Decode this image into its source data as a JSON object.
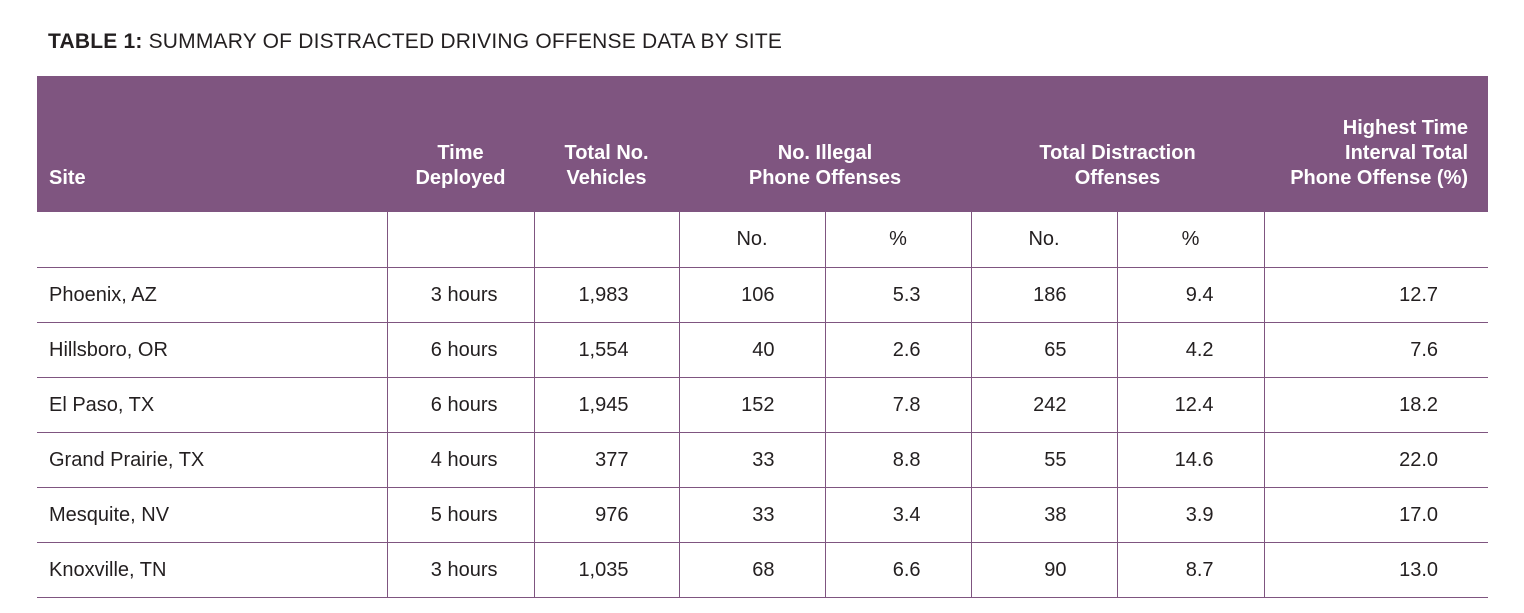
{
  "caption": {
    "label": "TABLE 1:",
    "title": "SUMMARY OF DISTRACTED DRIVING OFFENSE DATA BY SITE"
  },
  "headers": {
    "site": "Site",
    "time_deployed_1": "Time",
    "time_deployed_2": "Deployed",
    "total_vehicles_1": "Total No.",
    "total_vehicles_2": "Vehicles",
    "phone_offenses_1": "No. Illegal",
    "phone_offenses_2": "Phone Offenses",
    "distraction_offenses_1": "Total Distraction",
    "distraction_offenses_2": "Offenses",
    "highest_1": "Highest Time",
    "highest_2": "Interval  Total",
    "highest_3": "Phone Offense (%)"
  },
  "subheaders": {
    "phone_no": "No.",
    "phone_pct": "%",
    "dist_no": "No.",
    "dist_pct": "%"
  },
  "rows": [
    {
      "site": "Phoenix, AZ",
      "time": "3 hours",
      "vehicles": "1,983",
      "phone_no": "106",
      "phone_pct": "5.3",
      "dist_no": "186",
      "dist_pct": "9.4",
      "highest": "12.7"
    },
    {
      "site": "Hillsboro, OR",
      "time": "6 hours",
      "vehicles": "1,554",
      "phone_no": "40",
      "phone_pct": "2.6",
      "dist_no": "65",
      "dist_pct": "4.2",
      "highest": "7.6"
    },
    {
      "site": "El Paso, TX",
      "time": "6 hours",
      "vehicles": "1,945",
      "phone_no": "152",
      "phone_pct": "7.8",
      "dist_no": "242",
      "dist_pct": "12.4",
      "highest": "18.2"
    },
    {
      "site": "Grand Prairie, TX",
      "time": "4 hours",
      "vehicles": "377",
      "phone_no": "33",
      "phone_pct": "8.8",
      "dist_no": "55",
      "dist_pct": "14.6",
      "highest": "22.0"
    },
    {
      "site": "Mesquite, NV",
      "time": "5 hours",
      "vehicles": "976",
      "phone_no": "33",
      "phone_pct": "3.4",
      "dist_no": "38",
      "dist_pct": "3.9",
      "highest": "17.0"
    },
    {
      "site": "Knoxville, TN",
      "time": "3 hours",
      "vehicles": "1,035",
      "phone_no": "68",
      "phone_pct": "6.6",
      "dist_no": "90",
      "dist_pct": "8.7",
      "highest": "13.0"
    }
  ],
  "colors": {
    "header_background": "#7f5580",
    "header_text": "#ffffff",
    "rule": "#7f5580",
    "body_text": "#231f20"
  }
}
